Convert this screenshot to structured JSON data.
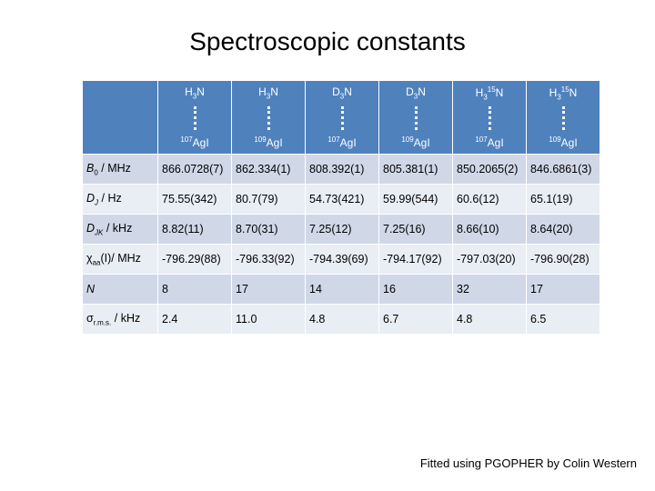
{
  "title": "Spectroscopic constants",
  "table": {
    "columns": [
      {
        "top": [
          {
            "text": "H"
          },
          {
            "text": "3",
            "position": "sub"
          },
          {
            "text": "N"
          }
        ],
        "bottom": [
          {
            "text": "107",
            "position": "sup"
          },
          {
            "text": "AgI"
          }
        ]
      },
      {
        "top": [
          {
            "text": "H"
          },
          {
            "text": "3",
            "position": "sub"
          },
          {
            "text": "N"
          }
        ],
        "bottom": [
          {
            "text": "109",
            "position": "sup"
          },
          {
            "text": "AgI"
          }
        ]
      },
      {
        "top": [
          {
            "text": "D"
          },
          {
            "text": "3",
            "position": "sub"
          },
          {
            "text": "N"
          }
        ],
        "bottom": [
          {
            "text": "107",
            "position": "sup"
          },
          {
            "text": "AgI"
          }
        ]
      },
      {
        "top": [
          {
            "text": "D"
          },
          {
            "text": "3",
            "position": "sub"
          },
          {
            "text": "N"
          }
        ],
        "bottom": [
          {
            "text": "109",
            "position": "sup"
          },
          {
            "text": "AgI"
          }
        ]
      },
      {
        "top": [
          {
            "text": "H"
          },
          {
            "text": "3",
            "position": "sub"
          },
          {
            "text": "15",
            "position": "sup"
          },
          {
            "text": "N"
          }
        ],
        "bottom": [
          {
            "text": "107",
            "position": "sup"
          },
          {
            "text": "AgI"
          }
        ]
      },
      {
        "top": [
          {
            "text": "H"
          },
          {
            "text": "3",
            "position": "sub"
          },
          {
            "text": "15",
            "position": "sup"
          },
          {
            "text": "N"
          }
        ],
        "bottom": [
          {
            "text": "109",
            "position": "sup"
          },
          {
            "text": "AgI"
          }
        ]
      }
    ],
    "rows": [
      {
        "label": [
          {
            "text": "B",
            "italic": true
          },
          {
            "text": "0",
            "position": "sub"
          },
          {
            "text": " / MHz"
          }
        ],
        "cells": [
          "866.0728(7)",
          "862.334(1)",
          "808.392(1)",
          "805.381(1)",
          "850.2065(2)",
          "846.6861(3)"
        ]
      },
      {
        "label": [
          {
            "text": "D",
            "italic": true
          },
          {
            "text": "J",
            "italic": true,
            "position": "sub"
          },
          {
            "text": " / Hz"
          }
        ],
        "cells": [
          "75.55(342)",
          "80.7(79)",
          "54.73(421)",
          "59.99(544)",
          "60.6(12)",
          "65.1(19)"
        ]
      },
      {
        "label": [
          {
            "text": "D",
            "italic": true
          },
          {
            "text": "JK",
            "italic": true,
            "position": "sub"
          },
          {
            "text": " / kHz"
          }
        ],
        "cells": [
          "8.82(11)",
          "8.70(31)",
          "7.25(12)",
          "7.25(16)",
          "8.66(10)",
          "8.64(20)"
        ]
      },
      {
        "label": [
          {
            "text": "χ"
          },
          {
            "text": "aa",
            "position": "sub"
          },
          {
            "text": "(I)/ MHz"
          }
        ],
        "cells": [
          "-796.29(88)",
          "-796.33(92)",
          "-794.39(69)",
          "-794.17(92)",
          "-797.03(20)",
          "-796.90(28)"
        ]
      },
      {
        "label": [
          {
            "text": "N",
            "italic": true
          }
        ],
        "cells": [
          "8",
          "17",
          "14",
          "16",
          "32",
          "17"
        ]
      },
      {
        "label": [
          {
            "text": "σ"
          },
          {
            "text": "r.m.s.",
            "position": "sub"
          },
          {
            "text": " / kHz"
          }
        ],
        "cells": [
          "2.4",
          "11.0",
          "4.8",
          "6.7",
          "4.8",
          "6.5"
        ]
      }
    ]
  },
  "footer": "Fitted using PGOPHER by Colin Western"
}
